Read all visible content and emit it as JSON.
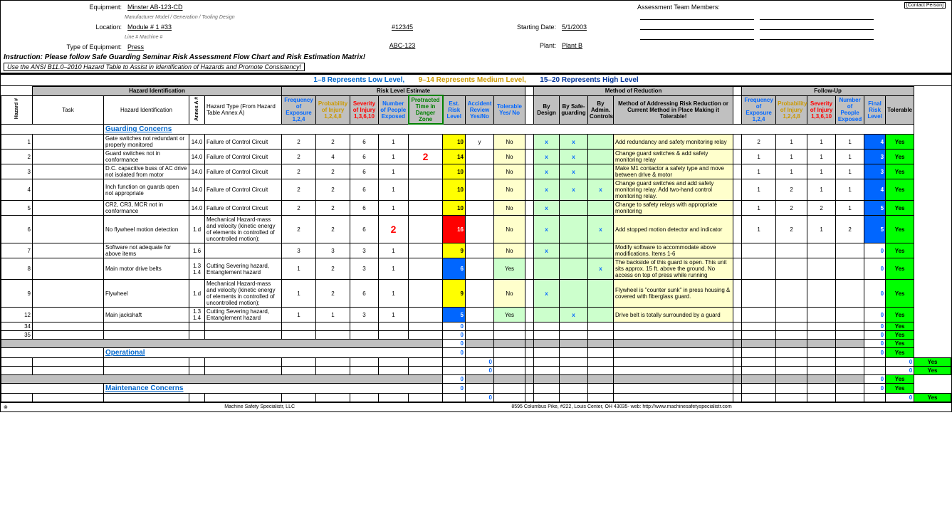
{
  "header": {
    "equipment_lbl": "Equipment:",
    "equipment_val": "Minster   AB-123-CD",
    "equipment_sub": "Manufacturer       Model / Generation / Tooling Design",
    "location_lbl": "Location:",
    "location_val": "Module # 1    #33",
    "location_sub": "Line #     Machine #",
    "ref_num": "#12345",
    "type_lbl": "Type of Equipment:",
    "type_val": "Press",
    "abc_val": "ABC-123",
    "start_lbl": "Starting Date:",
    "start_val": "5/1/2003",
    "plant_lbl": "Plant:",
    "plant_val": "Plant B",
    "team_lbl": "Assessment Team Members:",
    "contact": "[Contact Person]",
    "instruction": "Instruction: Please follow Safe Guarding Seminar Risk Assessment Flow Chart and Risk Estimation Matrix!",
    "note": "Use the ANSI B11.0–2010 Hazard Table to Assist in Identification of Hazards and Promote Consistency!",
    "lvl_low": "1–8 Represents Low Level,",
    "lvl_med": "9–14 Represents Medium Level,",
    "lvl_hi": "15–20 Represents High Level"
  },
  "sections": {
    "haz_id": "Hazard Identification",
    "risk_est": "Risk Level Estimate",
    "method": "Method of Reduction",
    "followup": "Follow-Up"
  },
  "cols": {
    "hazard_num": "Hazard #",
    "task": "Task",
    "haz_ident": "Hazard Identification",
    "annex": "Annex A #",
    "haz_type": "Hazard Type (From Hazard Table Annex A)",
    "freq": "Frequency of Exposure 1,2,4",
    "prob": "Probability of Injury 1,2,4,8",
    "sev": "Severity of Injury 1,3,6,10",
    "num_people": "Number of People Exposed",
    "danger": "Protracted Time in Danger Zone",
    "est_risk": "Est. Risk Level",
    "accident": "Accident Review Yes/No",
    "tolerable": "Tolerable Yes/ No",
    "by_design": "By Design",
    "by_safe": "By Safe-guarding",
    "by_admin": "By Admin. Controls",
    "method_addr": "Method of Addressing Risk Reduction or Current Method in Place Making it Tolerable!",
    "freq2": "Frequency of Exposure 1,2,4",
    "prob2": "Probability of Injury 1,2,4,8",
    "sev2": "Severity of Injury 1,3,6,10",
    "num_people2": "Number of People Exposed",
    "final_risk": "Final Risk Level",
    "tolerable2": "Tolerable"
  },
  "cats": {
    "guarding": "Guarding Concerns",
    "operational": "Operational",
    "maintenance": "Maintenance Concerns"
  },
  "rows": [
    {
      "n": "1",
      "haz": "Gate switches not redundant or properly monitored",
      "annex": "14.0",
      "type": "Failure of Control Circuit",
      "f": "2",
      "p": "2",
      "s": "6",
      "np": "1",
      "dz": "",
      "erl": "10",
      "erl_c": "y",
      "acc": "y",
      "tol": "No",
      "bd": "x",
      "bs": "x",
      "ba": "",
      "meth": "Add redundancy and safety monitoring relay",
      "f2": "2",
      "p2": "1",
      "s2": "1",
      "np2": "1",
      "frl": "4",
      "frl_c": "b",
      "t2": "Yes"
    },
    {
      "n": "2",
      "haz": "Guard switches not in conformance",
      "annex": "14.0",
      "type": "Failure of Control Circuit",
      "f": "2",
      "p": "4",
      "s": "6",
      "np": "1",
      "dz": "2",
      "erl": "14",
      "erl_c": "y",
      "acc": "",
      "tol": "No",
      "bd": "x",
      "bs": "x",
      "ba": "",
      "meth": "Change guard switches & add safety monitoring relay",
      "f2": "1",
      "p2": "1",
      "s2": "1",
      "np2": "1",
      "frl": "3",
      "frl_c": "b",
      "t2": "Yes"
    },
    {
      "n": "3",
      "haz": "D.C. capacitive buss of AC drive not isolated from motor",
      "annex": "14.0",
      "type": "Failure of Control Circuit",
      "f": "2",
      "p": "2",
      "s": "6",
      "np": "1",
      "dz": "",
      "erl": "10",
      "erl_c": "y",
      "acc": "",
      "tol": "No",
      "bd": "x",
      "bs": "x",
      "ba": "",
      "meth": "Make M1 contactor a safety type and move between drive & motor",
      "f2": "1",
      "p2": "1",
      "s2": "1",
      "np2": "1",
      "frl": "3",
      "frl_c": "b",
      "t2": "Yes"
    },
    {
      "n": "4",
      "haz": "Inch function on guards open not appropriate",
      "annex": "14.0",
      "type": "Failure of Control Circuit",
      "f": "2",
      "p": "2",
      "s": "6",
      "np": "1",
      "dz": "",
      "erl": "10",
      "erl_c": "y",
      "acc": "",
      "tol": "No",
      "bd": "x",
      "bs": "x",
      "ba": "x",
      "meth": "Change guard switches and add safety monitoring relay. Add two-hand control monitoring relay.",
      "f2": "1",
      "p2": "2",
      "s2": "1",
      "np2": "1",
      "frl": "4",
      "frl_c": "b",
      "t2": "Yes"
    },
    {
      "n": "5",
      "haz": "CR2, CR3, MCR not in conformance",
      "annex": "14.0",
      "type": "Failure of Control Circuit",
      "f": "2",
      "p": "2",
      "s": "6",
      "np": "1",
      "dz": "",
      "erl": "10",
      "erl_c": "y",
      "acc": "",
      "tol": "No",
      "bd": "x",
      "bs": "",
      "ba": "",
      "meth": "Change to safety relays with appropriate monitoring",
      "f2": "1",
      "p2": "2",
      "s2": "2",
      "np2": "1",
      "frl": "5",
      "frl_c": "b",
      "t2": "Yes"
    },
    {
      "n": "6",
      "haz": "No flywheel motion detection",
      "annex": "1.d",
      "type": "Mechanical Hazard-mass and velocity (kinetic energy of elements in controlled of uncontrolled motion);",
      "f": "2",
      "p": "2",
      "s": "6",
      "np": "2",
      "dz": "",
      "erl": "16",
      "erl_c": "r",
      "acc": "",
      "tol": "No",
      "bd": "x",
      "bs": "",
      "ba": "x",
      "meth": "Add stopped motion detector and indicator",
      "f2": "1",
      "p2": "2",
      "s2": "1",
      "np2": "2",
      "frl": "5",
      "frl_c": "b",
      "t2": "Yes"
    },
    {
      "n": "7",
      "haz": "Software not adequate for above items",
      "annex": "1.6",
      "type": "",
      "f": "3",
      "p": "3",
      "s": "3",
      "np": "1",
      "dz": "",
      "erl": "9",
      "erl_c": "y",
      "acc": "",
      "tol": "No",
      "bd": "x",
      "bs": "",
      "ba": "",
      "meth": "Modify software to accommodate above modifications. Items 1-6",
      "f2": "",
      "p2": "",
      "s2": "",
      "np2": "",
      "frl": "0",
      "frl_c": "",
      "t2": "Yes"
    },
    {
      "n": "8",
      "haz": "Main motor drive belts",
      "annex": "1.3 1.4",
      "type": "Cutting Severing hazard, Entanglement hazard",
      "f": "1",
      "p": "2",
      "s": "3",
      "np": "1",
      "dz": "",
      "erl": "6",
      "erl_c": "b",
      "acc": "",
      "tol": "Yes",
      "bd": "",
      "bs": "",
      "ba": "x",
      "meth": "The backside of this guard is open. This unit sits approx. 15 ft. above the ground. No access on top of press while running",
      "f2": "",
      "p2": "",
      "s2": "",
      "np2": "",
      "frl": "0",
      "frl_c": "",
      "t2": "Yes",
      "tolc": "g"
    },
    {
      "n": "9",
      "haz": "Flywheel",
      "annex": "1.d",
      "type": "Mechanical Hazard-mass and velocity (kinetic energy of elements in controlled of uncontrolled motion);",
      "f": "1",
      "p": "2",
      "s": "6",
      "np": "1",
      "dz": "",
      "erl": "9",
      "erl_c": "y",
      "acc": "",
      "tol": "No",
      "bd": "x",
      "bs": "",
      "ba": "",
      "meth": "Flywheel is \"counter sunk\" in press housing & covered with fiberglass guard.",
      "f2": "",
      "p2": "",
      "s2": "",
      "np2": "",
      "frl": "0",
      "frl_c": "",
      "t2": "Yes"
    },
    {
      "n": "12",
      "haz": "Main jackshaft",
      "annex": "1.3 1.4",
      "type": "Cutting Severing hazard, Entanglement hazard",
      "f": "1",
      "p": "1",
      "s": "3",
      "np": "1",
      "dz": "",
      "erl": "5",
      "erl_c": "b",
      "acc": "",
      "tol": "Yes",
      "bd": "",
      "bs": "x",
      "ba": "",
      "meth": "Drive belt is totally surrounded by a guard",
      "f2": "",
      "p2": "",
      "s2": "",
      "np2": "",
      "frl": "0",
      "frl_c": "",
      "t2": "Yes",
      "tolc": "g"
    }
  ],
  "empty_nums": [
    "34",
    "35"
  ],
  "footer": {
    "left": "Machine Safety Specialistr, LLC",
    "mid": "8595 Columbus Pike, #222, Louis Center, OH 43035- web: http://www.machinesafetyspecialistr.com"
  },
  "colors": {
    "yellow": "#ffff00",
    "red": "#ff0000",
    "blue": "#0066ff",
    "green": "#00ff00",
    "ltgreen": "#ccffcc",
    "ltyellow": "#ffffcc",
    "gray": "#c0c0c0"
  }
}
